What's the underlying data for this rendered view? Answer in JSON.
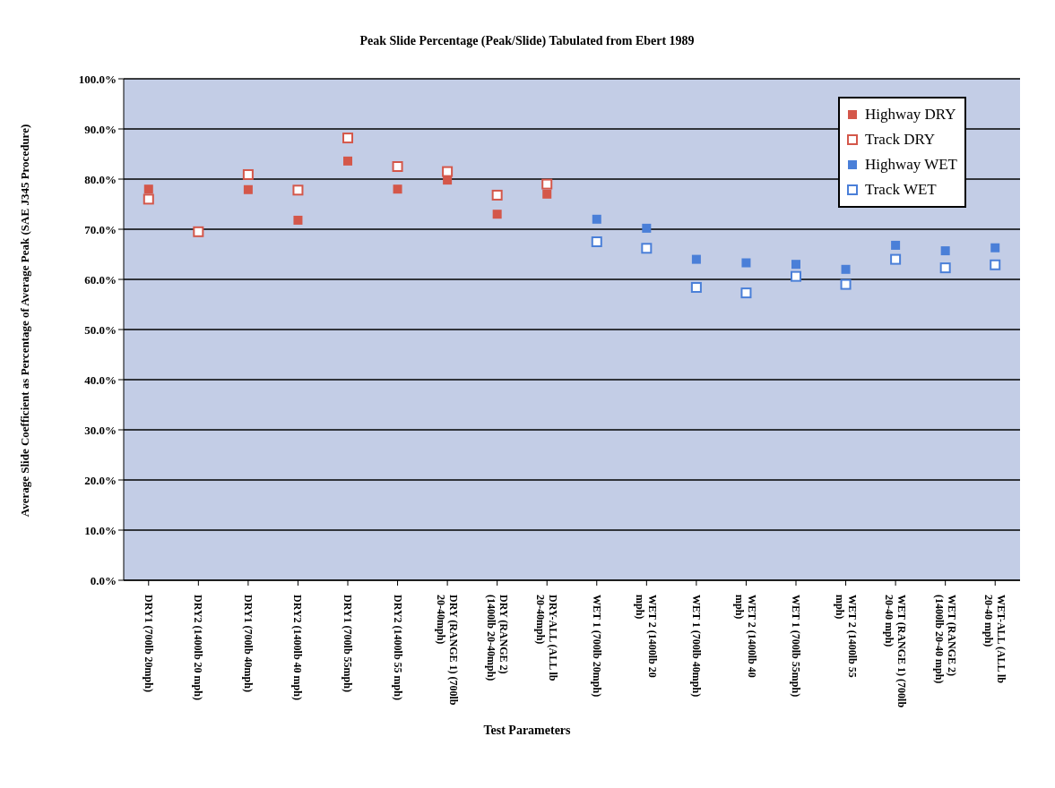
{
  "chart_data": {
    "type": "scatter",
    "title": "Peak Slide Percentage (Peak/Slide) Tabulated from Ebert 1989",
    "xlabel": "Test Parameters",
    "ylabel": "Average Slide Coefficient as Percentage of Average Peak (SAE J345 Procedure)",
    "categories": [
      "DRY1 (700lb 20mph)",
      "DRY2 (1400lb 20 mph)",
      "DRY1 (700lb 40mph)",
      "DRY2 (1400lb 40 mph)",
      "DRY1 (700lb 55mph)",
      "DRY2 (1400lb 55 mph)",
      "DRY (RANGE 1) (700lb 20-40mph)",
      "DRY (RANGE 2) (1400lb 20-40mph)",
      "DRY-ALL (ALL lb 20-40mph)",
      "WET 1 (700lb 20mph)",
      "WET 2 (1400lb 20 mph)",
      "WET 1 (700lb 40mph)",
      "WET 2 (1400lb 40 mph)",
      "WET 1 (700lb 55mph)",
      "WET 2 (1400lb 55 mph)",
      "WET (RANGE 1) (700lb 20-40 mph)",
      "WET (RANGE 2) (1400lb 20-40 mph)",
      "WET-ALL (ALL lb 20-40 mph)"
    ],
    "series": [
      {
        "name": "Highway DRY",
        "color": "#d4574a",
        "values": [
          78,
          null,
          77.9,
          71.8,
          83.6,
          78,
          79.8,
          73,
          77,
          null,
          null,
          null,
          null,
          null,
          null,
          null,
          null,
          null
        ]
      },
      {
        "name": "Track DRY",
        "color": "#d4574a",
        "values": [
          76,
          69.5,
          80.9,
          77.8,
          88.2,
          82.5,
          81.5,
          76.8,
          79,
          null,
          null,
          null,
          null,
          null,
          null,
          null,
          null,
          null
        ]
      },
      {
        "name": "Highway WET",
        "color": "#4a7fd8",
        "values": [
          null,
          null,
          null,
          null,
          null,
          null,
          null,
          null,
          null,
          72,
          70.2,
          64,
          63.3,
          63,
          62,
          66.8,
          65.7,
          66.3
        ]
      },
      {
        "name": "Track WET",
        "color": "#4a7fd8",
        "values": [
          null,
          null,
          null,
          null,
          null,
          null,
          null,
          null,
          null,
          67.5,
          66.2,
          58.4,
          57.3,
          60.6,
          59,
          64,
          62.3,
          62.9
        ]
      }
    ],
    "ylim": [
      0,
      100
    ],
    "yticks": [
      {
        "value": 0,
        "label": "0.0%"
      },
      {
        "value": 10,
        "label": "10.0%"
      },
      {
        "value": 20,
        "label": "20.0%"
      },
      {
        "value": 30,
        "label": "30.0%"
      },
      {
        "value": 40,
        "label": "40.0%"
      },
      {
        "value": 50,
        "label": "50.0%"
      },
      {
        "value": 60,
        "label": "60.0%"
      },
      {
        "value": 70,
        "label": "70.0%"
      },
      {
        "value": 80,
        "label": "80.0%"
      },
      {
        "value": 90,
        "label": "90.0%"
      },
      {
        "value": 100,
        "label": "100.0%"
      }
    ],
    "grid": "y",
    "legend": "top right",
    "marker": "square"
  }
}
